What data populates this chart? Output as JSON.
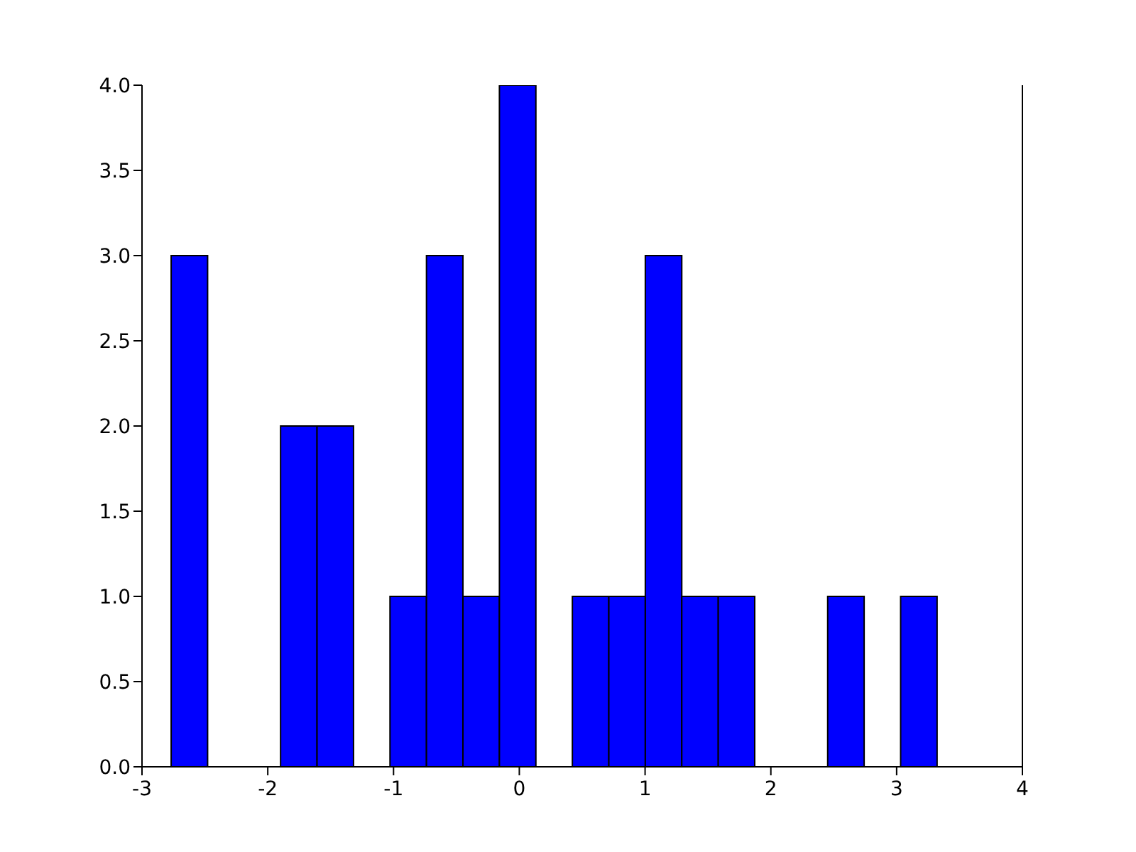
{
  "chart_data": {
    "type": "histogram",
    "bins": [
      -2.77,
      -2.48,
      -2.19,
      -1.9,
      -1.61,
      -1.32,
      -1.03,
      -0.74,
      -0.45,
      -0.16,
      0.13,
      0.42,
      0.71,
      1.0,
      1.29,
      1.58,
      1.87,
      2.16,
      2.45,
      2.74,
      3.03,
      3.32
    ],
    "values": [
      3,
      0,
      0,
      2,
      2,
      0,
      1,
      3,
      1,
      4,
      0,
      1,
      1,
      3,
      1,
      1,
      0,
      0,
      1,
      0,
      1
    ],
    "color": "#0000ff",
    "xlim": [
      -3,
      4
    ],
    "xticks": [
      -3,
      -2,
      -1,
      0,
      1,
      2,
      3,
      4
    ],
    "ylim": [
      0,
      4
    ],
    "yticks": [
      {
        "value": 0,
        "label": "0.0"
      },
      {
        "value": 0.5,
        "label": "0.5"
      },
      {
        "value": 1,
        "label": "1.0"
      },
      {
        "value": 1.5,
        "label": "1.5"
      },
      {
        "value": 2,
        "label": "2.0"
      },
      {
        "value": 2.5,
        "label": "2.5"
      },
      {
        "value": 3,
        "label": "3.0"
      },
      {
        "value": 3.5,
        "label": "3.5"
      },
      {
        "value": 4,
        "label": "4.0"
      }
    ]
  }
}
